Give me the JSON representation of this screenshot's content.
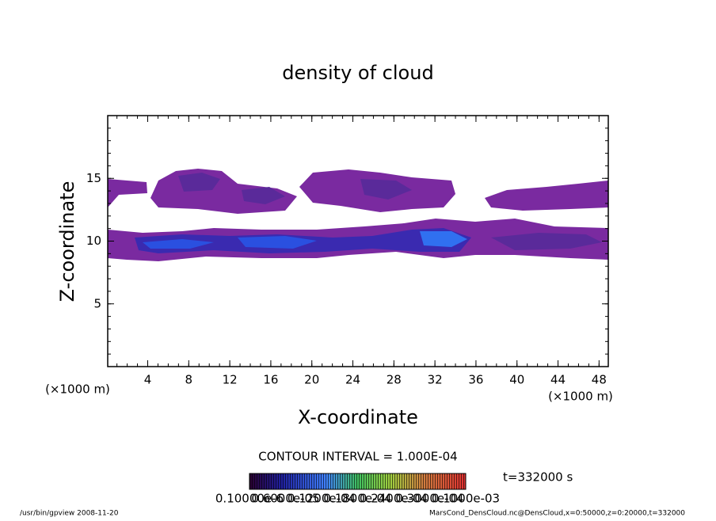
{
  "chart_data": {
    "type": "contour",
    "title": "density of cloud",
    "x_label": "X-coordinate",
    "y_label": "Z-coordinate",
    "x_unit": "(×1000 m)",
    "xlim": [
      0.1,
      48.9
    ],
    "xticks": [
      4,
      8,
      12,
      16,
      20,
      24,
      28,
      32,
      36,
      40,
      44,
      48
    ],
    "ylim": [
      0,
      20
    ],
    "yticks": [
      5,
      10,
      15
    ],
    "contour_interval": "CONTOUR INTERVAL = 1.000E-04",
    "time_label": "t=332000 s",
    "colorbar_labels": [
      "0.10000e-6",
      "0.6000e-05",
      "0.1200e-04",
      "0.1800e-04",
      "0.2400e-04",
      "0.3000e-04",
      "0.1000e-03"
    ],
    "footer_left": "/usr/bin/gpview   2008-11-20",
    "footer_right": "MarsCond_DensCloud.nc@DensCloud,x=0:50000,z=0:20000,t=332000"
  }
}
